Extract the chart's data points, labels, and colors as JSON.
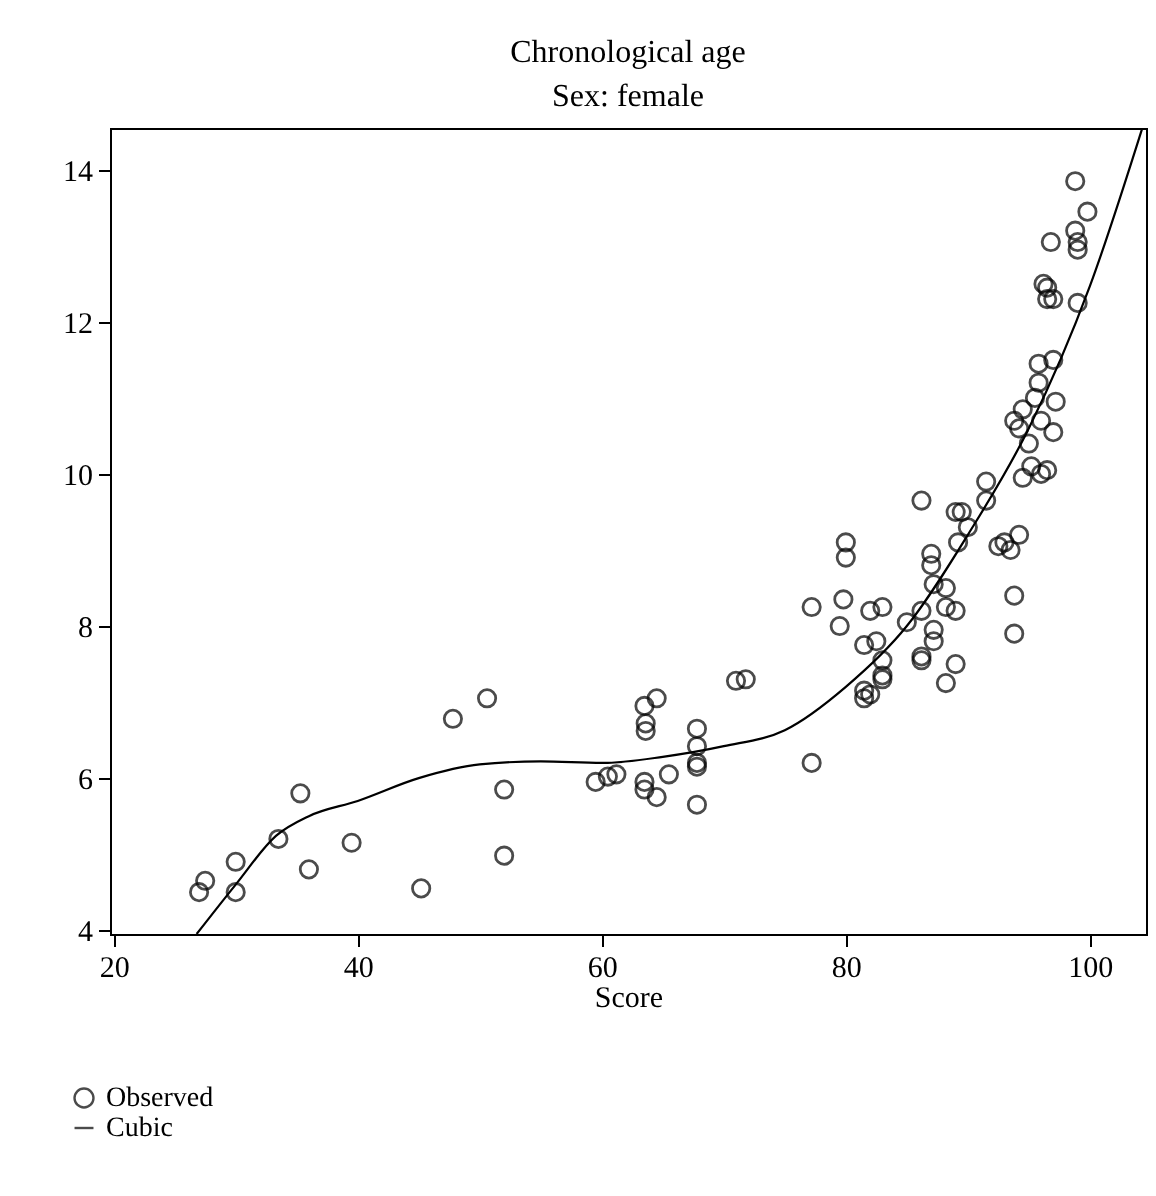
{
  "chart_data": {
    "type": "scatter",
    "title": "Chronological age",
    "subtitle": "Sex: female",
    "xlabel": "Score",
    "xlim": [
      19.7,
      104.6
    ],
    "ylim": [
      3.95,
      14.55
    ],
    "xticks": [
      20,
      40,
      60,
      80,
      100
    ],
    "yticks": [
      4,
      6,
      8,
      10,
      12,
      14
    ],
    "grid": false,
    "legend": "bottom left",
    "line_style": "solid",
    "series": [
      {
        "name": "Observed",
        "marker": "circle",
        "color": "#000000",
        "x": [
          27,
          27.5,
          30,
          30,
          33.5,
          35.3,
          36,
          39.5,
          45.2,
          47.8,
          50.6,
          52,
          52,
          59.5,
          60.5,
          61.2,
          63.5,
          63.6,
          63.6,
          64.5,
          63.5,
          63.5,
          64.5,
          65.5,
          67.8,
          67.8,
          67.8,
          67.8,
          67.8,
          71,
          71.8,
          77.2,
          77.2,
          79.5,
          79.8,
          80,
          80,
          81.5,
          81.5,
          81.5,
          82,
          82.5,
          82,
          83,
          83,
          83,
          83,
          85,
          86.2,
          86.2,
          86.2,
          86.2,
          87,
          87,
          87.2,
          87.2,
          87.2,
          88.2,
          88.2,
          88.2,
          89,
          89,
          89,
          89.5,
          89.2,
          90,
          91.5,
          91.5,
          92.5,
          93,
          93.5,
          93.8,
          93.8,
          94.2,
          93.8,
          94.2,
          94.5,
          94.5,
          95,
          95.2,
          95.5,
          95.8,
          95.8,
          96,
          96,
          96.5,
          96.2,
          96.5,
          96.5,
          97,
          96.8,
          97,
          97,
          97.2,
          98.8,
          98.8,
          99,
          99,
          99,
          99.8
        ],
        "values": [
          4.5,
          4.65,
          4.9,
          4.5,
          5.2,
          5.8,
          4.8,
          5.15,
          4.55,
          6.78,
          7.05,
          5.85,
          4.98,
          5.95,
          6.02,
          6.05,
          6.95,
          6.72,
          6.62,
          7.05,
          5.95,
          5.85,
          5.75,
          6.05,
          6.65,
          6.42,
          6.2,
          6.15,
          5.65,
          7.28,
          7.3,
          6.2,
          8.25,
          8.0,
          8.35,
          9.1,
          8.9,
          7.75,
          7.15,
          7.05,
          8.2,
          7.8,
          7.1,
          8.25,
          7.55,
          7.35,
          7.3,
          8.05,
          9.65,
          8.2,
          7.6,
          7.55,
          8.95,
          8.8,
          8.55,
          7.95,
          7.8,
          8.5,
          8.25,
          7.25,
          9.5,
          8.2,
          7.5,
          9.5,
          9.1,
          9.3,
          9.9,
          9.65,
          9.05,
          9.1,
          9.0,
          8.4,
          7.9,
          9.2,
          10.7,
          10.6,
          10.85,
          9.95,
          10.4,
          10.1,
          11.0,
          11.45,
          11.2,
          10.7,
          10.0,
          10.05,
          12.5,
          12.45,
          12.3,
          12.3,
          13.05,
          11.5,
          10.55,
          10.95,
          13.85,
          13.2,
          13.05,
          12.95,
          12.25,
          13.45
        ]
      },
      {
        "name": "Cubic",
        "type": "line",
        "color": "#000000",
        "x": [
          26.8,
          30,
          33.3,
          36,
          40,
          45,
          50,
          55,
          60,
          65,
          70,
          75,
          80,
          85,
          90,
          95,
          100,
          104.3
        ],
        "values": [
          3.95,
          4.6,
          5.24,
          5.5,
          5.7,
          6.0,
          6.18,
          6.22,
          6.2,
          6.28,
          6.42,
          6.63,
          7.2,
          8.0,
          9.2,
          10.6,
          12.47,
          14.55
        ]
      }
    ]
  }
}
